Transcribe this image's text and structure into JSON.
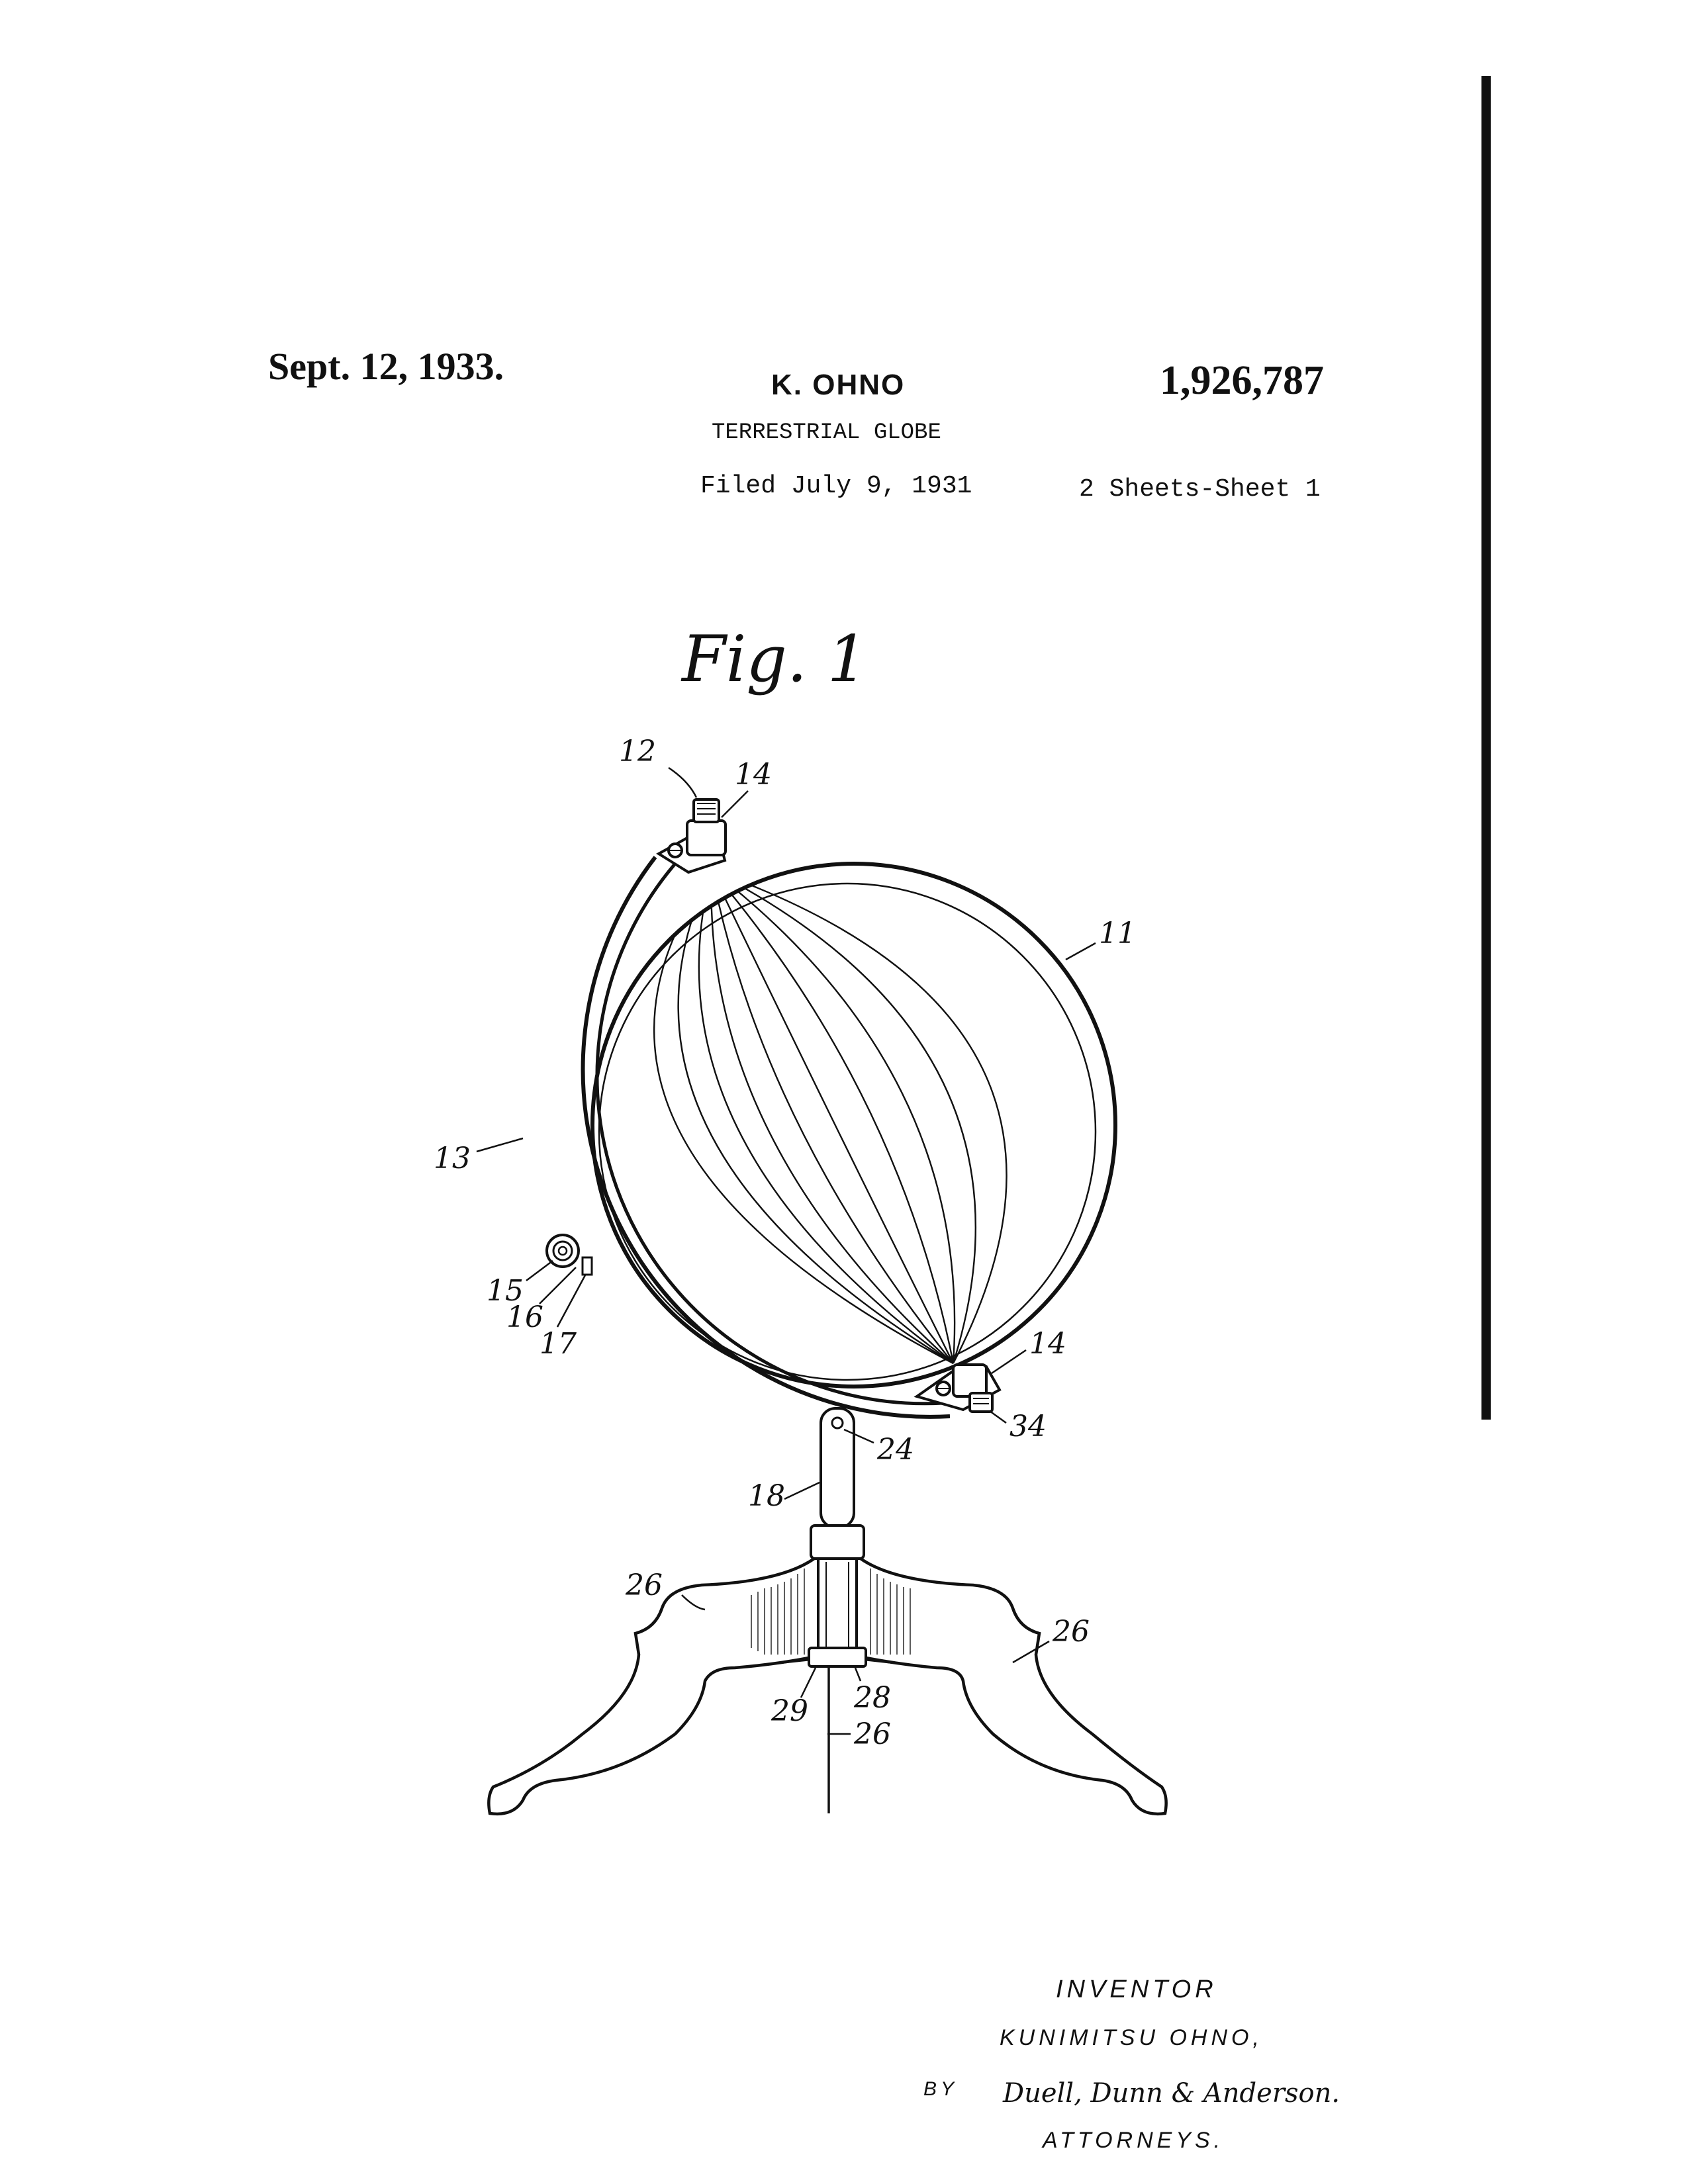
{
  "header": {
    "date": "Sept. 12, 1933.",
    "inventor_short": "K. OHNO",
    "patent_number": "1,926,787",
    "title": "TERRESTRIAL GLOBE",
    "filed": "Filed July 9, 1931",
    "sheets": "2 Sheets-Sheet 1"
  },
  "figure": {
    "caption": "Fig. 1",
    "labels": {
      "l12": "12",
      "l14a": "14",
      "l11": "11",
      "l13": "13",
      "l15": "15",
      "l16": "16",
      "l17": "17",
      "l14b": "14",
      "l34": "34",
      "l24": "24",
      "l18": "18",
      "l26a": "26",
      "l26b": "26",
      "l29": "29",
      "l28": "28",
      "l26c": "26"
    }
  },
  "signature_block": {
    "inventor_heading": "INVENTOR",
    "inventor_name": "KUNIMITSU OHNO,",
    "by": "BY",
    "attorneys_signature": "Duell, Dunn & Anderson.",
    "attorneys_heading": "ATTORNEYS."
  }
}
